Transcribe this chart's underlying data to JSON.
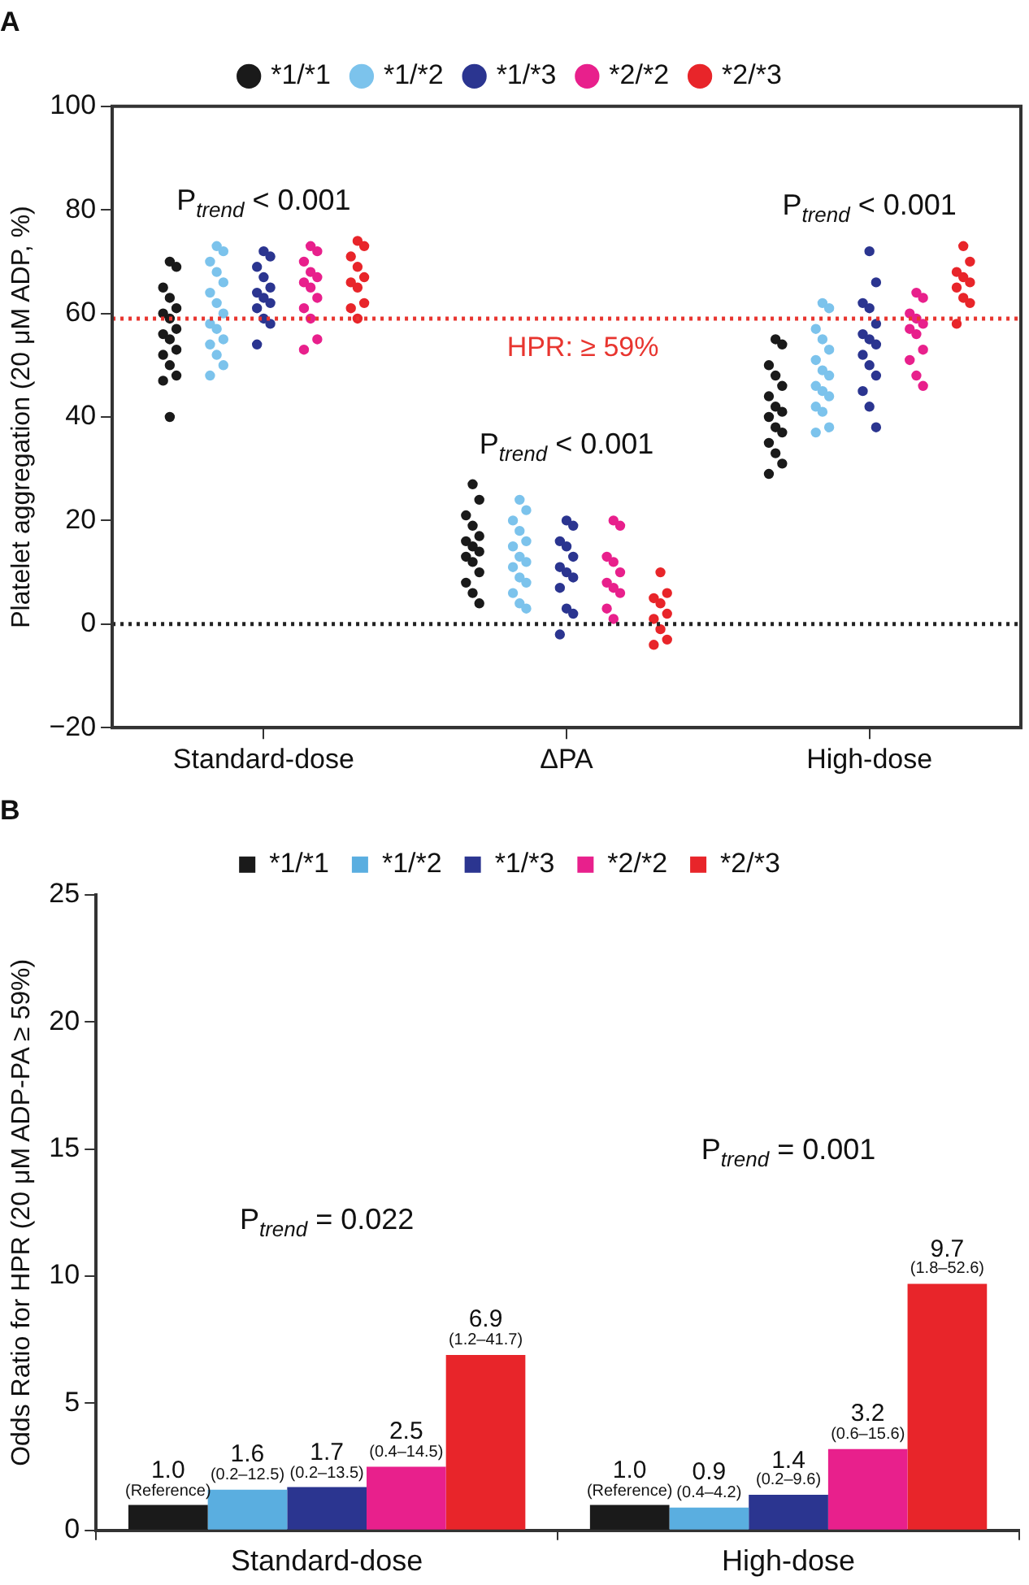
{
  "chart_data": [
    {
      "type": "scatter",
      "title": "A",
      "ylabel": "Platelet aggregation (20 μM ADP, %)",
      "categories": [
        "Standard-dose",
        "ΔPA",
        "High-dose"
      ],
      "ylim": [
        -20,
        100
      ],
      "yticks": [
        -20,
        0,
        20,
        40,
        60,
        80,
        100
      ],
      "grid": false,
      "legend": "top",
      "marker": "circle",
      "ref_lines": [
        {
          "axis": "y",
          "value": 59,
          "label": "HPR: ≥ 59%",
          "color": "#e8352f",
          "line_style": "dotted"
        },
        {
          "axis": "y",
          "value": 0,
          "label": null,
          "color": "#222222",
          "line_style": "dotted"
        }
      ],
      "annotations": [
        "P$_{trend}$ < 0.001",
        "P$_{trend}$ < 0.001",
        "P$_{trend}$ < 0.001"
      ],
      "series": [
        {
          "name": "*1/*1",
          "color": "#1a1a1a",
          "x": [
            "Standard-dose",
            "Standard-dose",
            "Standard-dose",
            "Standard-dose",
            "Standard-dose",
            "Standard-dose",
            "Standard-dose",
            "Standard-dose",
            "Standard-dose",
            "Standard-dose",
            "Standard-dose",
            "Standard-dose",
            "Standard-dose",
            "Standard-dose",
            "Standard-dose",
            "Standard-dose",
            "ΔPA",
            "ΔPA",
            "ΔPA",
            "ΔPA",
            "ΔPA",
            "ΔPA",
            "ΔPA",
            "ΔPA",
            "ΔPA",
            "ΔPA",
            "ΔPA",
            "ΔPA",
            "ΔPA",
            "ΔPA",
            "High-dose",
            "High-dose",
            "High-dose",
            "High-dose",
            "High-dose",
            "High-dose",
            "High-dose",
            "High-dose",
            "High-dose",
            "High-dose",
            "High-dose",
            "High-dose",
            "High-dose",
            "High-dose",
            "High-dose"
          ],
          "values": [
            70,
            69,
            65,
            63,
            61,
            60,
            59,
            57,
            56,
            55,
            53,
            52,
            50,
            48,
            47,
            40,
            27,
            24,
            21,
            19,
            17,
            16,
            15,
            14,
            13,
            12,
            10,
            8,
            6,
            4,
            55,
            54,
            50,
            48,
            46,
            44,
            42,
            41,
            40,
            38,
            37,
            35,
            33,
            31,
            29
          ]
        },
        {
          "name": "*1/*2",
          "color": "#7cc3ec",
          "x": [
            "Standard-dose",
            "Standard-dose",
            "Standard-dose",
            "Standard-dose",
            "Standard-dose",
            "Standard-dose",
            "Standard-dose",
            "Standard-dose",
            "Standard-dose",
            "Standard-dose",
            "Standard-dose",
            "Standard-dose",
            "Standard-dose",
            "Standard-dose",
            "Standard-dose",
            "ΔPA",
            "ΔPA",
            "ΔPA",
            "ΔPA",
            "ΔPA",
            "ΔPA",
            "ΔPA",
            "ΔPA",
            "ΔPA",
            "ΔPA",
            "ΔPA",
            "ΔPA",
            "ΔPA",
            "ΔPA",
            "High-dose",
            "High-dose",
            "High-dose",
            "High-dose",
            "High-dose",
            "High-dose",
            "High-dose",
            "High-dose",
            "High-dose",
            "High-dose",
            "High-dose",
            "High-dose",
            "High-dose",
            "High-dose",
            "High-dose"
          ],
          "values": [
            73,
            72,
            70,
            68,
            66,
            64,
            62,
            60,
            58,
            57,
            55,
            54,
            52,
            50,
            48,
            24,
            22,
            20,
            18,
            16,
            15,
            13,
            12,
            11,
            9,
            8,
            6,
            4,
            3,
            62,
            61,
            57,
            55,
            53,
            51,
            49,
            48,
            46,
            45,
            44,
            42,
            41,
            38,
            37
          ]
        },
        {
          "name": "*1/*3",
          "color": "#2b3590",
          "x": [
            "Standard-dose",
            "Standard-dose",
            "Standard-dose",
            "Standard-dose",
            "Standard-dose",
            "Standard-dose",
            "Standard-dose",
            "Standard-dose",
            "Standard-dose",
            "Standard-dose",
            "Standard-dose",
            "Standard-dose",
            "ΔPA",
            "ΔPA",
            "ΔPA",
            "ΔPA",
            "ΔPA",
            "ΔPA",
            "ΔPA",
            "ΔPA",
            "ΔPA",
            "ΔPA",
            "ΔPA",
            "ΔPA",
            "High-dose",
            "High-dose",
            "High-dose",
            "High-dose",
            "High-dose",
            "High-dose",
            "High-dose",
            "High-dose",
            "High-dose",
            "High-dose",
            "High-dose",
            "High-dose",
            "High-dose",
            "High-dose"
          ],
          "values": [
            72,
            71,
            69,
            67,
            65,
            64,
            63,
            62,
            61,
            59,
            58,
            54,
            20,
            19,
            16,
            15,
            13,
            11,
            10,
            9,
            7,
            3,
            2,
            -2,
            72,
            66,
            62,
            61,
            58,
            56,
            55,
            54,
            52,
            50,
            48,
            45,
            42,
            38
          ]
        },
        {
          "name": "*2/*2",
          "color": "#e8208c",
          "x": [
            "Standard-dose",
            "Standard-dose",
            "Standard-dose",
            "Standard-dose",
            "Standard-dose",
            "Standard-dose",
            "Standard-dose",
            "Standard-dose",
            "Standard-dose",
            "Standard-dose",
            "Standard-dose",
            "Standard-dose",
            "ΔPA",
            "ΔPA",
            "ΔPA",
            "ΔPA",
            "ΔPA",
            "ΔPA",
            "ΔPA",
            "ΔPA",
            "ΔPA",
            "ΔPA",
            "High-dose",
            "High-dose",
            "High-dose",
            "High-dose",
            "High-dose",
            "High-dose",
            "High-dose",
            "High-dose",
            "High-dose",
            "High-dose",
            "High-dose"
          ],
          "values": [
            73,
            72,
            70,
            68,
            67,
            66,
            65,
            63,
            61,
            59,
            55,
            53,
            20,
            19,
            13,
            12,
            10,
            8,
            7,
            6,
            3,
            1,
            64,
            63,
            60,
            59,
            58,
            57,
            56,
            53,
            51,
            48,
            46
          ]
        },
        {
          "name": "*2/*3",
          "color": "#e8252a",
          "x": [
            "Standard-dose",
            "Standard-dose",
            "Standard-dose",
            "Standard-dose",
            "Standard-dose",
            "Standard-dose",
            "Standard-dose",
            "Standard-dose",
            "Standard-dose",
            "Standard-dose",
            "ΔPA",
            "ΔPA",
            "ΔPA",
            "ΔPA",
            "ΔPA",
            "ΔPA",
            "ΔPA",
            "ΔPA",
            "ΔPA",
            "High-dose",
            "High-dose",
            "High-dose",
            "High-dose",
            "High-dose",
            "High-dose",
            "High-dose",
            "High-dose",
            "High-dose"
          ],
          "values": [
            74,
            73,
            71,
            69,
            67,
            66,
            65,
            62,
            61,
            59,
            10,
            6,
            5,
            4,
            2,
            1,
            -1,
            -3,
            -4,
            73,
            70,
            68,
            67,
            66,
            65,
            63,
            62,
            58
          ]
        }
      ]
    },
    {
      "type": "bar",
      "title": "B",
      "ylabel": "Odds Ratio for HPR (20 μM ADP-PA ≥ 59%)",
      "categories": [
        "Standard-dose",
        "High-dose"
      ],
      "ylim": [
        0,
        25
      ],
      "yticks": [
        0,
        5,
        10,
        15,
        20,
        25
      ],
      "grid": false,
      "legend": "top",
      "annotations": [
        "P$_{trend}$ = 0.022",
        "P$_{trend}$ = 0.001"
      ],
      "series": [
        {
          "name": "*1/*1",
          "color": "#1a1a1a",
          "values": [
            1.0,
            1.0
          ],
          "value_labels": [
            "1.0\n(Reference)",
            "1.0\n(Reference)"
          ]
        },
        {
          "name": "*1/*2",
          "color": "#5aaee0",
          "values": [
            1.6,
            0.9
          ],
          "value_labels": [
            "1.6\n(0.2–12.5)",
            "0.9\n(0.4–4.2)"
          ]
        },
        {
          "name": "*1/*3",
          "color": "#2b3590",
          "values": [
            1.7,
            1.4
          ],
          "value_labels": [
            "1.7\n(0.2–13.5)",
            "1.4\n(0.2–9.6)"
          ]
        },
        {
          "name": "*2/*2",
          "color": "#e8208c",
          "values": [
            2.5,
            3.2
          ],
          "value_labels": [
            "2.5\n(0.4–14.5)",
            "3.2\n(0.6–15.6)"
          ]
        },
        {
          "name": "*2/*3",
          "color": "#e8252a",
          "values": [
            6.9,
            9.7
          ],
          "value_labels": [
            "6.9\n(1.2–41.7)",
            "9.7\n(1.8–52.6)"
          ]
        }
      ]
    }
  ]
}
